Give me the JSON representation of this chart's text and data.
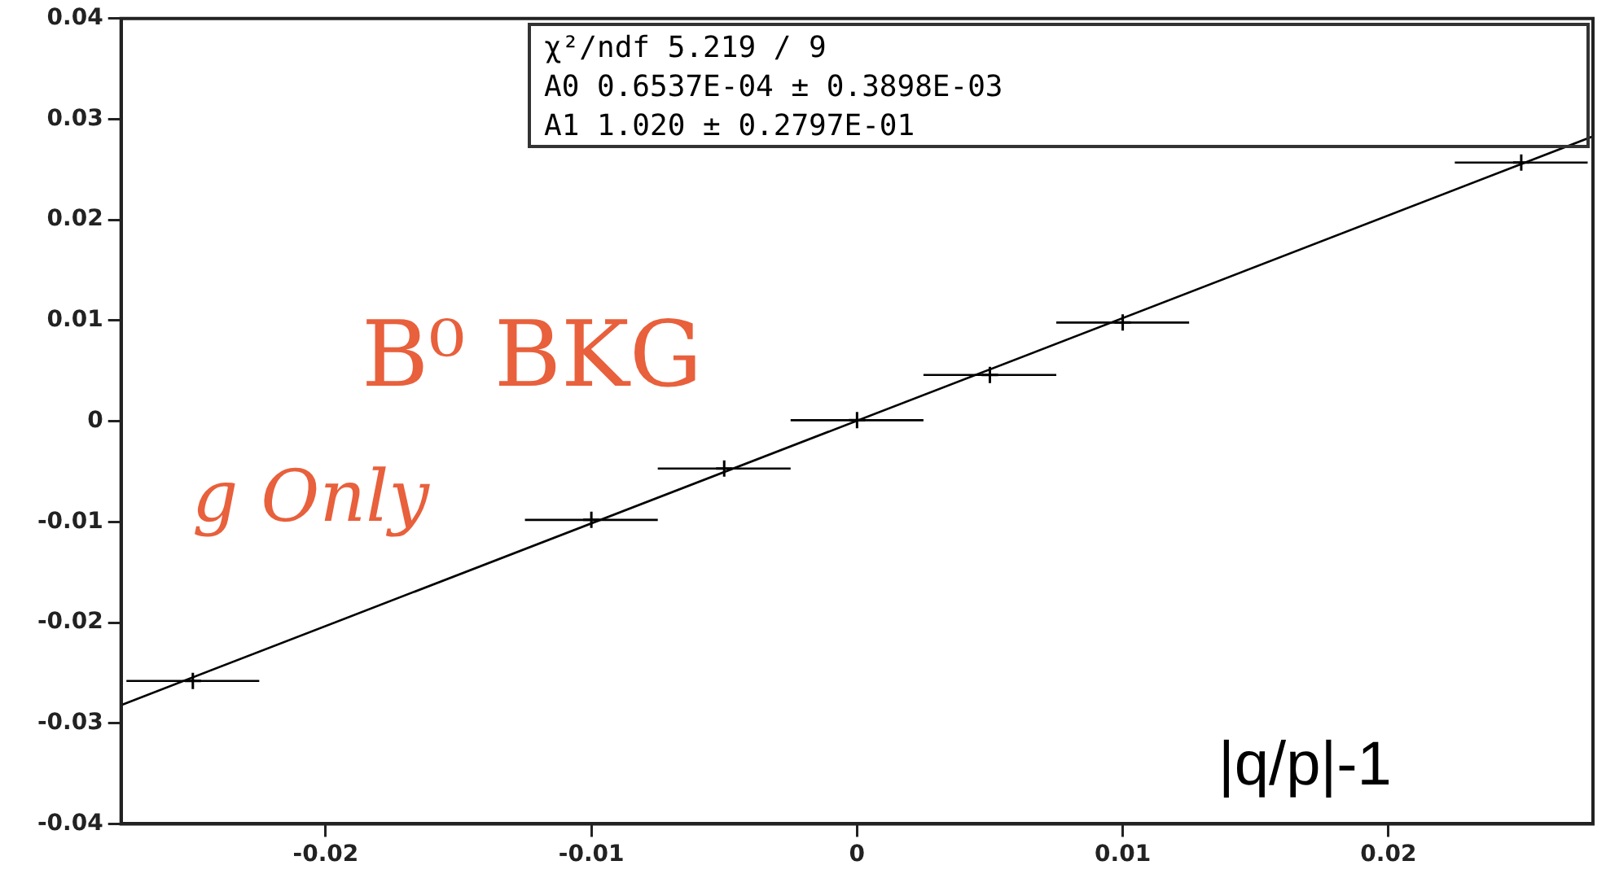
{
  "chart_data": {
    "type": "scatter",
    "xlim": [
      -0.0277,
      0.0277
    ],
    "xticks": [
      -0.02,
      -0.01,
      0,
      0.01,
      0.02
    ],
    "ylim": [
      -0.04,
      0.04
    ],
    "yticks": [
      -0.04,
      -0.03,
      -0.02,
      -0.01,
      0,
      0.01,
      0.02,
      0.03,
      0.04
    ],
    "grid": false,
    "legend": false,
    "series": [
      {
        "color": "#000000",
        "marker": "cross",
        "x": [
          -0.025,
          -0.01,
          -0.005,
          0,
          0.005,
          0.01,
          0.025
        ],
        "values": [
          -0.0258,
          -0.0098,
          -0.0047,
          0.0001,
          0.0046,
          0.0098,
          0.0257
        ],
        "xerrors": [
          0.0025,
          0.0025,
          0.0025,
          0.0025,
          0.0025,
          0.0025,
          0.0025
        ]
      },
      {
        "type": "line",
        "color": "#000000",
        "marker": "none",
        "x": [
          -0.0277,
          0.0277
        ],
        "values": [
          -0.0282,
          0.0283
        ]
      }
    ],
    "annotations": [
      "χ²/ndf 5.219 / 9",
      "A0 0.6537E-04 ± 0.3898E-03",
      "A1 1.020 ± 0.2797E-01",
      "B⁰ BKG",
      "g Only",
      "|q/p|-1"
    ]
  }
}
